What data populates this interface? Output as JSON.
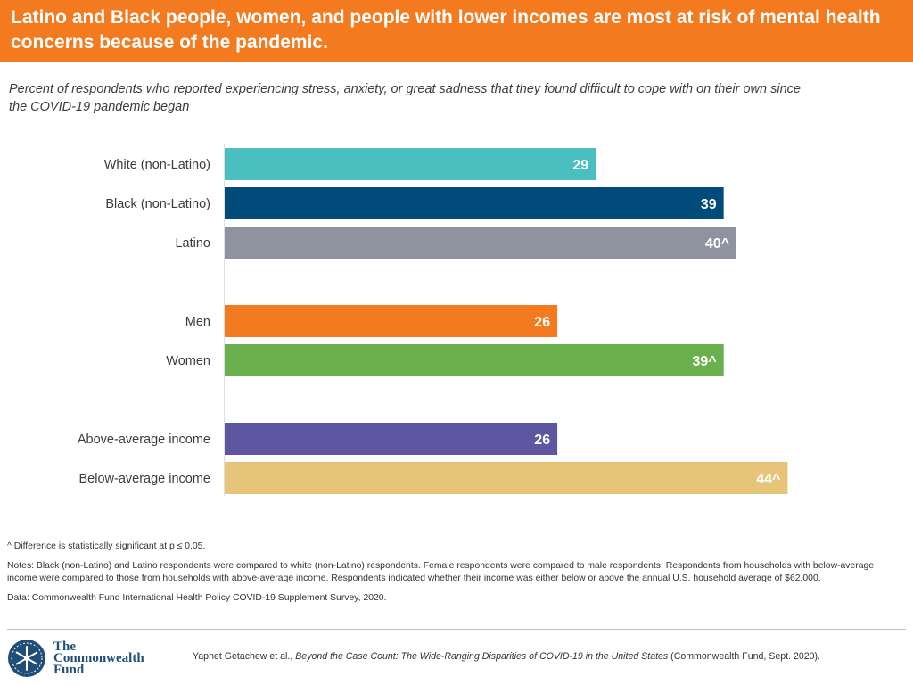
{
  "header": {
    "title": "Latino and Black people, women, and people with lower incomes are most at risk of mental health concerns because of the pandemic."
  },
  "subtitle": "Percent of respondents who reported experiencing stress, anxiety, or great sadness that they found difficult to cope with on their own since the COVID-19 pandemic began",
  "chart_data": {
    "type": "bar",
    "orientation": "horizontal",
    "title": "",
    "xlabel": "",
    "ylabel": "",
    "xlim": [
      0,
      50
    ],
    "grid": false,
    "groups": [
      {
        "categories": [
          "White (non-Latino)",
          "Black (non-Latino)",
          "Latino"
        ],
        "values": [
          29,
          39,
          40
        ],
        "labels": [
          "29",
          "39",
          "40^"
        ],
        "colors": [
          "#4bbfbf",
          "#004b7a",
          "#8f93a0"
        ]
      },
      {
        "categories": [
          "Men",
          "Women"
        ],
        "values": [
          26,
          39
        ],
        "labels": [
          "26",
          "39^"
        ],
        "colors": [
          "#f47a20",
          "#6ab04c"
        ]
      },
      {
        "categories": [
          "Above-average income",
          "Below-average income"
        ],
        "values": [
          26,
          44
        ],
        "labels": [
          "26",
          "44^"
        ],
        "colors": [
          "#5e56a0",
          "#e6c47a"
        ]
      }
    ]
  },
  "footnotes": {
    "significance": "^ Difference is statistically significant at p ≤ 0.05.",
    "notes": "Notes: Black (non-Latino) and Latino respondents were compared to white (non-Latino) respondents. Female respondents were compared to male respondents. Respondents from households with below-average income were compared to those from households with above-average income. Respondents indicated whether their income was either below or above the annual U.S. household average of $62,000.",
    "data_source": "Data: Commonwealth Fund International Health Policy COVID-19 Supplement Survey, 2020."
  },
  "logo": {
    "line1": "The",
    "line2": "Commonwealth",
    "line3": "Fund"
  },
  "citation": {
    "authors": "Yaphet Getachew et al., ",
    "title": "Beyond the Case Count: The Wide-Ranging Disparities of COVID-19 in the United States",
    "publisher": " (Commonwealth Fund, Sept. 2020)."
  },
  "colors": {
    "header_bg": "#f47a20",
    "logo_blue": "#1f4e79"
  }
}
